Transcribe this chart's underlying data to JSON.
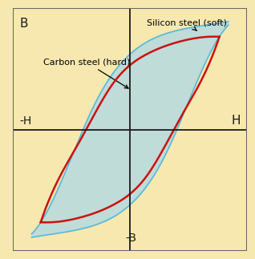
{
  "background_color": "#F7E8B0",
  "border_color": "#666666",
  "axis_color": "#1a1a1a",
  "silicon_color": "#ADD8E6",
  "silicon_edge_color": "#5BB8D8",
  "carbon_color": "#CC1111",
  "label_silicon": "Silicon steel (soft)",
  "label_carbon": "Carbon steel (hard)",
  "xlim": [
    -1.05,
    1.05
  ],
  "ylim": [
    -1.05,
    1.05
  ],
  "si_upper_x": [
    -0.88,
    -0.75,
    -0.55,
    -0.3,
    0.0,
    0.3,
    0.55,
    0.75,
    0.88
  ],
  "si_upper_y": [
    -0.9,
    -0.72,
    -0.3,
    0.25,
    0.65,
    0.82,
    0.88,
    0.91,
    0.93
  ],
  "si_lower_x": [
    0.88,
    0.75,
    0.55,
    0.3,
    0.0,
    -0.3,
    -0.55,
    -0.75,
    -0.88
  ],
  "si_lower_y": [
    0.9,
    0.72,
    0.3,
    -0.25,
    -0.65,
    -0.82,
    -0.88,
    -0.91,
    -0.93
  ],
  "ca_upper_x": [
    -0.8,
    -0.7,
    -0.45,
    -0.15,
    0.15,
    0.45,
    0.7,
    0.8
  ],
  "ca_upper_y": [
    -0.8,
    -0.55,
    -0.1,
    0.4,
    0.65,
    0.76,
    0.8,
    0.8
  ],
  "ca_lower_x": [
    0.8,
    0.7,
    0.45,
    0.15,
    -0.15,
    -0.45,
    -0.7,
    -0.8
  ],
  "ca_lower_y": [
    0.8,
    0.55,
    0.1,
    -0.4,
    -0.65,
    -0.76,
    -0.8,
    -0.8
  ]
}
